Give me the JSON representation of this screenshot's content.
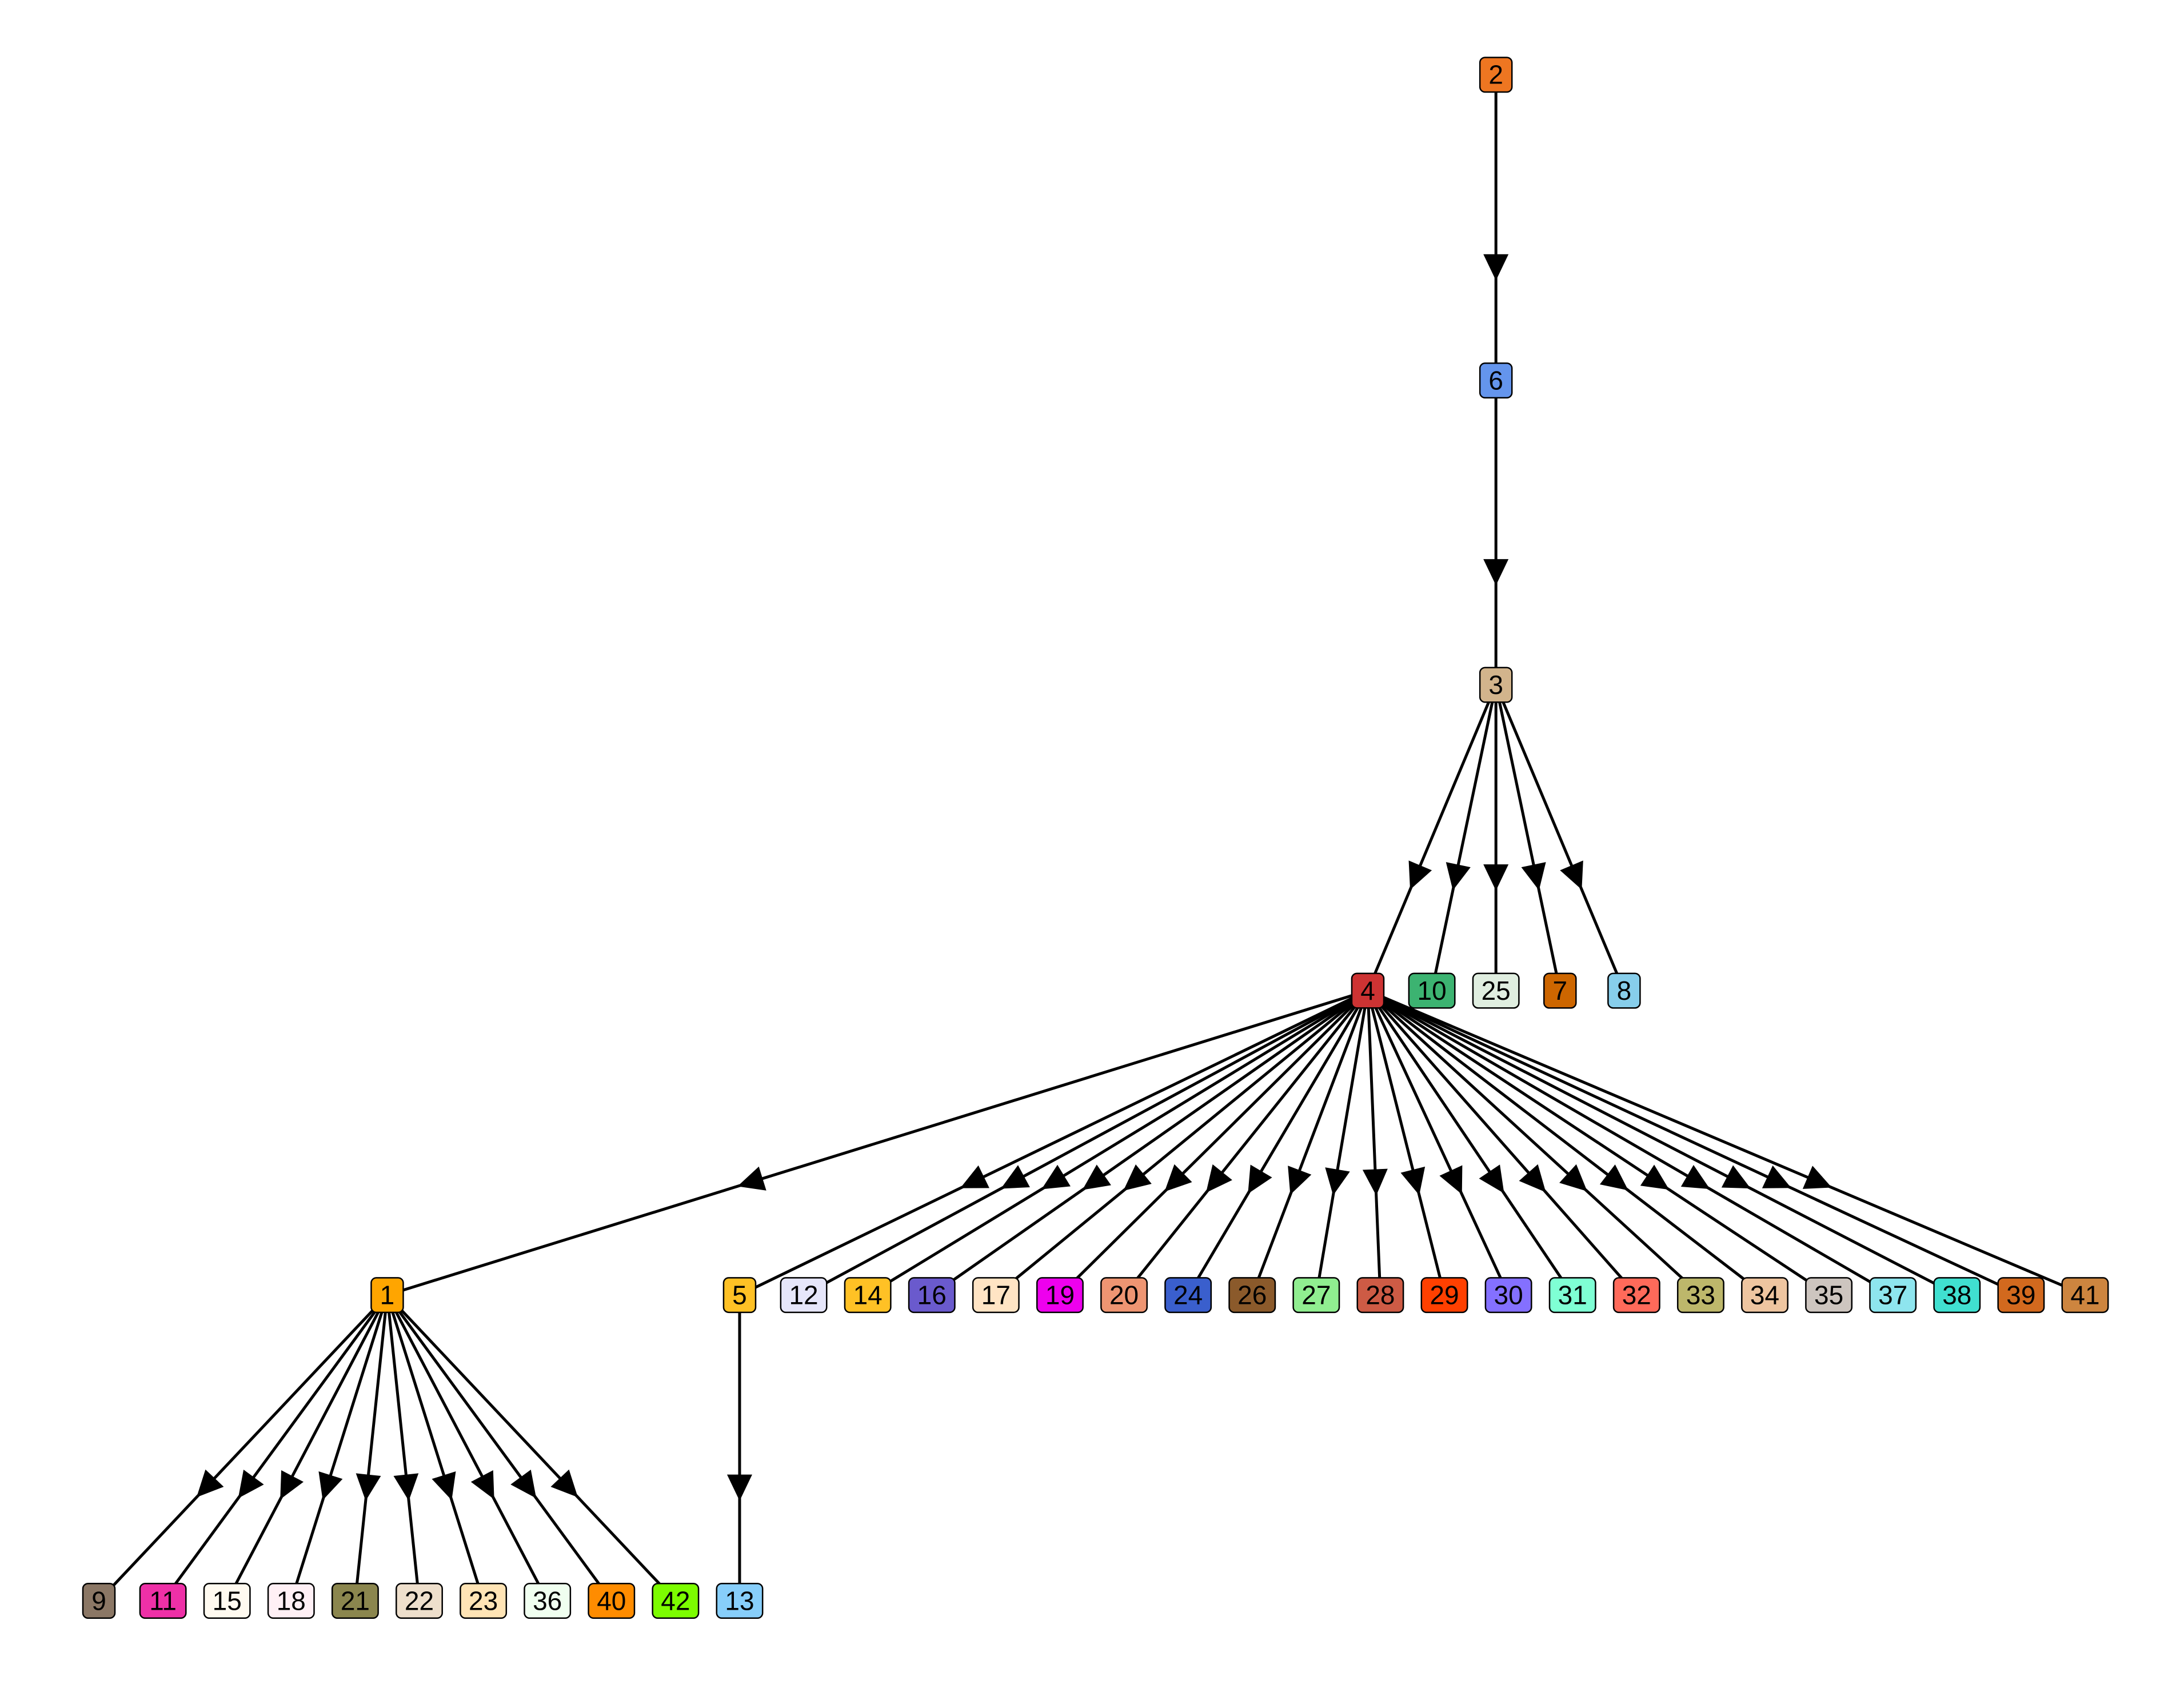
{
  "nodes": [
    {
      "id": "2",
      "color": "#EE7621"
    },
    {
      "id": "6",
      "color": "#6495ED"
    },
    {
      "id": "3",
      "color": "#D2B48C"
    },
    {
      "id": "4",
      "color": "#CD3333"
    },
    {
      "id": "10",
      "color": "#3CB371"
    },
    {
      "id": "25",
      "color": "#E0EEE0"
    },
    {
      "id": "7",
      "color": "#CD6600"
    },
    {
      "id": "8",
      "color": "#87CEEB"
    },
    {
      "id": "1",
      "color": "#FFA500"
    },
    {
      "id": "5",
      "color": "#FFC125"
    },
    {
      "id": "12",
      "color": "#E6E6FA"
    },
    {
      "id": "14",
      "color": "#FFC125"
    },
    {
      "id": "16",
      "color": "#6A5ACD"
    },
    {
      "id": "17",
      "color": "#FFE4C4"
    },
    {
      "id": "19",
      "color": "#EE00EE"
    },
    {
      "id": "20",
      "color": "#EE9572"
    },
    {
      "id": "24",
      "color": "#3A5FCD"
    },
    {
      "id": "26",
      "color": "#8B5A2B"
    },
    {
      "id": "27",
      "color": "#90EE90"
    },
    {
      "id": "28",
      "color": "#CD5B45"
    },
    {
      "id": "29",
      "color": "#FF4000"
    },
    {
      "id": "30",
      "color": "#8470FF"
    },
    {
      "id": "31",
      "color": "#7FFFD4"
    },
    {
      "id": "32",
      "color": "#FF6A5A"
    },
    {
      "id": "33",
      "color": "#BDB76B"
    },
    {
      "id": "34",
      "color": "#EEC5A0"
    },
    {
      "id": "35",
      "color": "#CDC5BF"
    },
    {
      "id": "37",
      "color": "#8EE5EE"
    },
    {
      "id": "38",
      "color": "#40E0D0"
    },
    {
      "id": "39",
      "color": "#D2691E"
    },
    {
      "id": "41",
      "color": "#CD853F"
    },
    {
      "id": "9",
      "color": "#8B7765"
    },
    {
      "id": "11",
      "color": "#EE30A7"
    },
    {
      "id": "15",
      "color": "#FFFAF0"
    },
    {
      "id": "18",
      "color": "#FFF0F5"
    },
    {
      "id": "21",
      "color": "#8B864E"
    },
    {
      "id": "22",
      "color": "#EEDFCC"
    },
    {
      "id": "23",
      "color": "#FFE4B5"
    },
    {
      "id": "36",
      "color": "#F0FFF0"
    },
    {
      "id": "40",
      "color": "#FF8C00"
    },
    {
      "id": "42",
      "color": "#7CFC00"
    },
    {
      "id": "13",
      "color": "#87CEFA"
    }
  ],
  "edges": [
    [
      "2",
      "6"
    ],
    [
      "6",
      "3"
    ],
    [
      "3",
      "4"
    ],
    [
      "3",
      "10"
    ],
    [
      "3",
      "25"
    ],
    [
      "3",
      "7"
    ],
    [
      "3",
      "8"
    ],
    [
      "4",
      "1"
    ],
    [
      "4",
      "5"
    ],
    [
      "4",
      "12"
    ],
    [
      "4",
      "14"
    ],
    [
      "4",
      "16"
    ],
    [
      "4",
      "17"
    ],
    [
      "4",
      "19"
    ],
    [
      "4",
      "20"
    ],
    [
      "4",
      "24"
    ],
    [
      "4",
      "26"
    ],
    [
      "4",
      "27"
    ],
    [
      "4",
      "28"
    ],
    [
      "4",
      "29"
    ],
    [
      "4",
      "30"
    ],
    [
      "4",
      "31"
    ],
    [
      "4",
      "32"
    ],
    [
      "4",
      "33"
    ],
    [
      "4",
      "34"
    ],
    [
      "4",
      "35"
    ],
    [
      "4",
      "37"
    ],
    [
      "4",
      "38"
    ],
    [
      "4",
      "39"
    ],
    [
      "4",
      "41"
    ],
    [
      "1",
      "9"
    ],
    [
      "1",
      "11"
    ],
    [
      "1",
      "15"
    ],
    [
      "1",
      "18"
    ],
    [
      "1",
      "21"
    ],
    [
      "1",
      "22"
    ],
    [
      "1",
      "23"
    ],
    [
      "1",
      "36"
    ],
    [
      "1",
      "40"
    ],
    [
      "1",
      "42"
    ],
    [
      "5",
      "13"
    ]
  ]
}
